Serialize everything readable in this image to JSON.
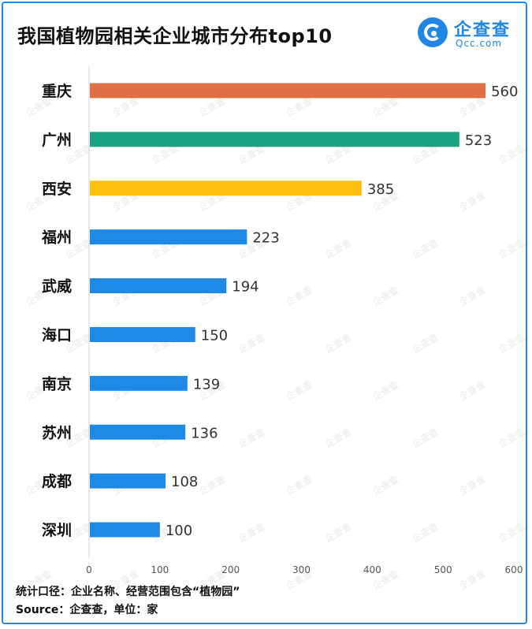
{
  "title": "我国植物园相关企业城市分布top10",
  "logo": {
    "name": "企查查",
    "url": "Qcc.com"
  },
  "watermark_text": "企查查",
  "chart_data": {
    "type": "bar",
    "orientation": "horizontal",
    "categories": [
      "重庆",
      "广州",
      "西安",
      "福州",
      "武威",
      "海口",
      "南京",
      "苏州",
      "成都",
      "深圳"
    ],
    "values": [
      560,
      523,
      385,
      223,
      194,
      150,
      139,
      136,
      108,
      100
    ],
    "bar_colors": [
      "#e06f44",
      "#1aa383",
      "#fcc10f",
      "#1f8ae6",
      "#1f8ae6",
      "#1f8ae6",
      "#1f8ae6",
      "#1f8ae6",
      "#1f8ae6",
      "#1f8ae6"
    ],
    "xlim": [
      0,
      600
    ],
    "xticks": [
      0,
      100,
      200,
      300,
      400,
      500,
      600
    ],
    "xlabel": "",
    "ylabel": "",
    "grid": false
  },
  "footer": {
    "note": "统计口径：企业名称、经营范围包含“植物园”",
    "source": "Source：企查查，单位：家"
  }
}
